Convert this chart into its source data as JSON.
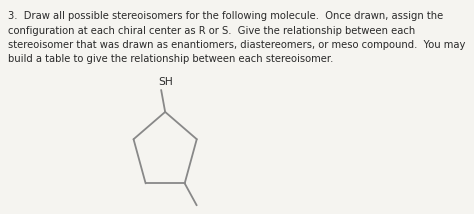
{
  "text_line1": "3.  Draw all possible stereoisomers for the following molecule.  Once drawn, assign the",
  "text_line2": "configuration at each chiral center as R or S.  Give the relationship between each",
  "text_line3": "stereoisomer that was drawn as enantiomers, diastereomers, or meso compound.  You may",
  "text_line4": "build a table to give the relationship between each stereoisomer.",
  "sh_label": "SH",
  "text_color": "#2a2a2a",
  "bg_color": "#f5f4f0",
  "font_size": 7.2,
  "line_color": "#888888",
  "line_width": 1.3
}
